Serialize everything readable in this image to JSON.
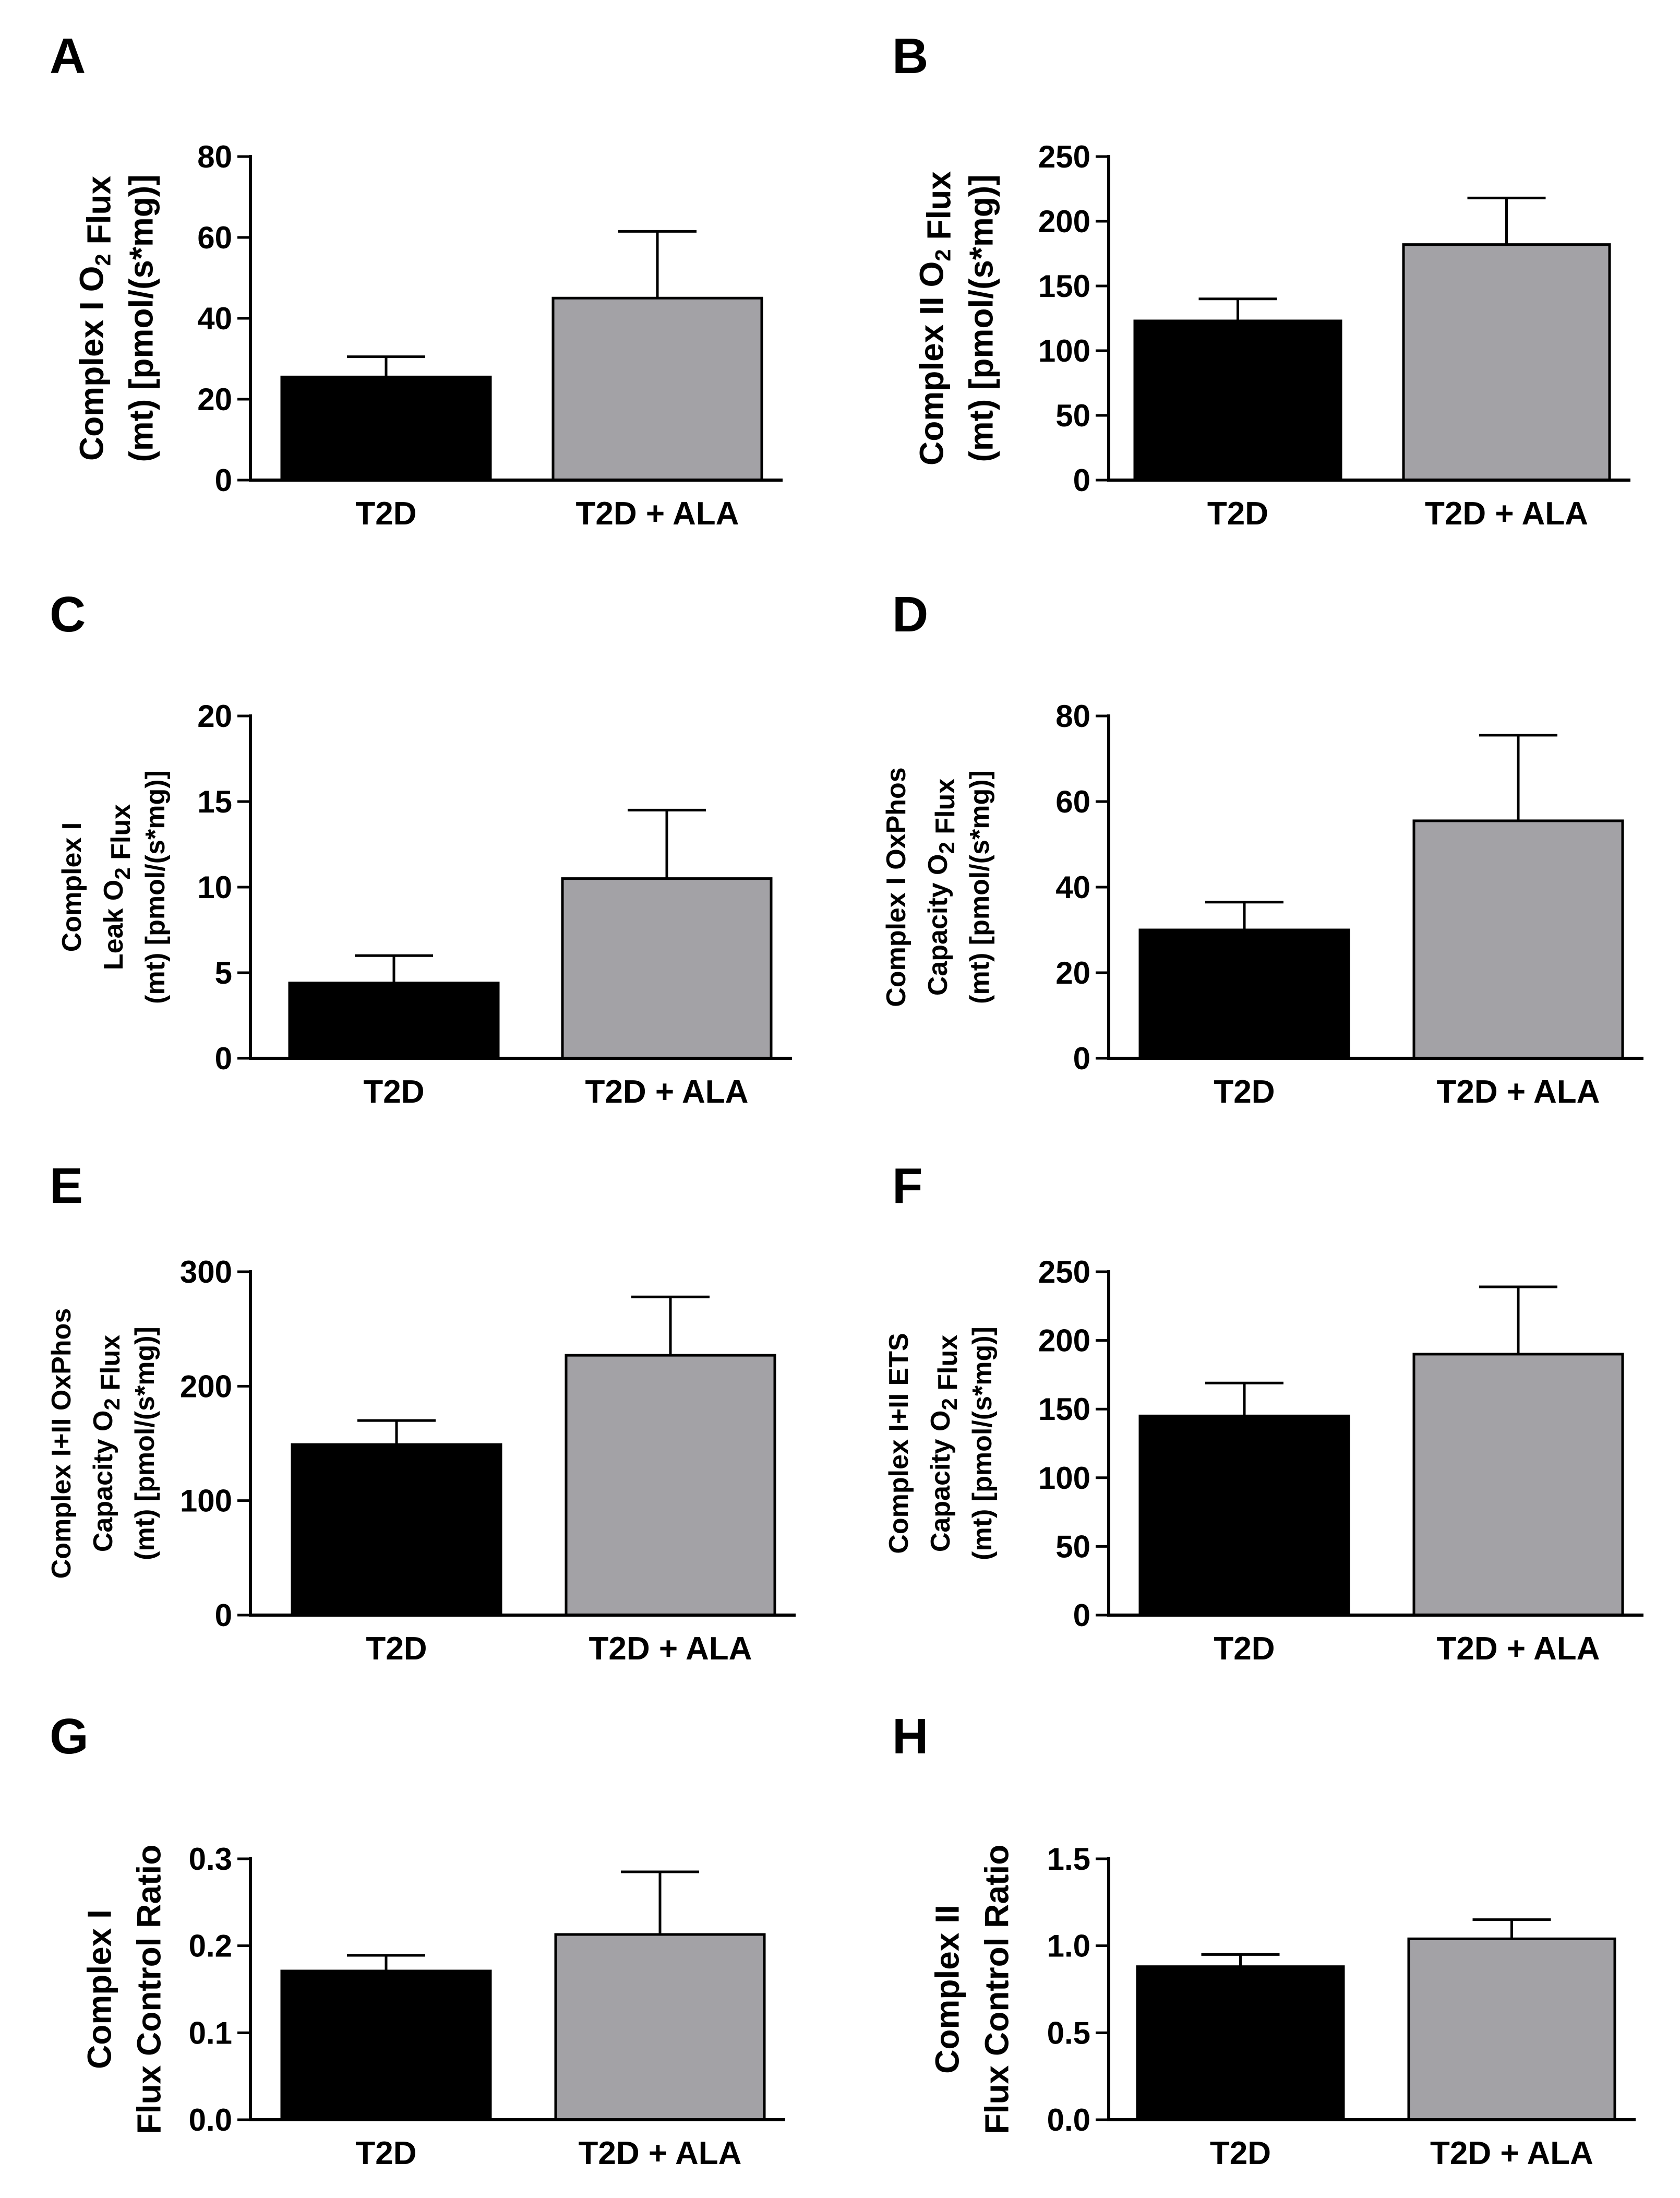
{
  "colors": {
    "t2d": "#000000",
    "t2d_ala": "#a3a2a6",
    "axis": "#000000"
  },
  "chart_data": [
    {
      "panel": "A",
      "type": "bar",
      "ylabel_lines": [
        [
          "Complex I O",
          {
            "sub": "2"
          },
          " Flux"
        ],
        [
          "(mt) [pmol/(s*mg)]"
        ]
      ],
      "categories": [
        "T2D",
        "T2D + ALA"
      ],
      "values": [
        25.5,
        45
      ],
      "errors": [
        5,
        16.5
      ],
      "ylim": [
        0,
        80
      ],
      "yticks": [
        0,
        20,
        40,
        60,
        80
      ],
      "ytick_labels": [
        "0",
        "20",
        "40",
        "60",
        "80"
      ]
    },
    {
      "panel": "B",
      "type": "bar",
      "ylabel_lines": [
        [
          "Complex II O",
          {
            "sub": "2"
          },
          " Flux"
        ],
        [
          "(mt) [pmol/(s*mg)]"
        ]
      ],
      "categories": [
        "T2D",
        "T2D + ALA"
      ],
      "values": [
        123,
        182
      ],
      "errors": [
        17,
        36
      ],
      "ylim": [
        0,
        250
      ],
      "yticks": [
        0,
        50,
        100,
        150,
        200,
        250
      ],
      "ytick_labels": [
        "0",
        "50",
        "100",
        "150",
        "200",
        "250"
      ]
    },
    {
      "panel": "C",
      "type": "bar",
      "ylabel_lines": [
        [
          "Complex I"
        ],
        [
          "Leak O",
          {
            "sub": "2"
          },
          " Flux"
        ],
        [
          "(mt) [pmol/(s*mg)]"
        ]
      ],
      "categories": [
        "T2D",
        "T2D + ALA"
      ],
      "values": [
        4.4,
        10.5
      ],
      "errors": [
        1.6,
        4
      ],
      "ylim": [
        0,
        20
      ],
      "yticks": [
        0,
        5,
        10,
        15,
        20
      ],
      "ytick_labels": [
        "0",
        "5",
        "10",
        "15",
        "20"
      ]
    },
    {
      "panel": "D",
      "type": "bar",
      "ylabel_lines": [
        [
          "Complex I OxPhos"
        ],
        [
          "Capacity O",
          {
            "sub": "2"
          },
          " Flux"
        ],
        [
          "(mt) [pmol/(s*mg)]"
        ]
      ],
      "categories": [
        "T2D",
        "T2D + ALA"
      ],
      "values": [
        30,
        55.5
      ],
      "errors": [
        6.5,
        20
      ],
      "ylim": [
        0,
        80
      ],
      "yticks": [
        0,
        20,
        40,
        60,
        80
      ],
      "ytick_labels": [
        "0",
        "20",
        "40",
        "60",
        "80"
      ]
    },
    {
      "panel": "E",
      "type": "bar",
      "ylabel_lines": [
        [
          "Complex I+II OxPhos"
        ],
        [
          "Capacity O",
          {
            "sub": "2"
          },
          " Flux"
        ],
        [
          "(mt) [pmol/(s*mg)]"
        ]
      ],
      "categories": [
        "T2D",
        "T2D + ALA"
      ],
      "values": [
        149,
        227
      ],
      "errors": [
        21,
        51
      ],
      "ylim": [
        0,
        300
      ],
      "yticks": [
        0,
        100,
        200,
        300
      ],
      "ytick_labels": [
        "0",
        "100",
        "200",
        "300"
      ]
    },
    {
      "panel": "F",
      "type": "bar",
      "ylabel_lines": [
        [
          "Complex I+II ETS"
        ],
        [
          "Capacity O",
          {
            "sub": "2"
          },
          " Flux"
        ],
        [
          "(mt) [pmol/(s*mg)]"
        ]
      ],
      "categories": [
        "T2D",
        "T2D + ALA"
      ],
      "values": [
        145,
        190
      ],
      "errors": [
        24,
        49
      ],
      "ylim": [
        0,
        250
      ],
      "yticks": [
        0,
        50,
        100,
        150,
        200,
        250
      ],
      "ytick_labels": [
        "0",
        "50",
        "100",
        "150",
        "200",
        "250"
      ]
    },
    {
      "panel": "G",
      "type": "bar",
      "ylabel_lines": [
        [
          "Complex I"
        ],
        [
          "Flux Control Ratio"
        ]
      ],
      "categories": [
        "T2D",
        "T2D + ALA"
      ],
      "values": [
        0.171,
        0.213
      ],
      "errors": [
        0.018,
        0.072
      ],
      "ylim": [
        0,
        0.3
      ],
      "yticks": [
        0,
        0.1,
        0.2,
        0.3
      ],
      "ytick_labels": [
        "0.0",
        "0.1",
        "0.2",
        "0.3"
      ]
    },
    {
      "panel": "H",
      "type": "bar",
      "ylabel_lines": [
        [
          "Complex II"
        ],
        [
          "Flux Control Ratio"
        ]
      ],
      "categories": [
        "T2D",
        "T2D + ALA"
      ],
      "values": [
        0.88,
        1.04
      ],
      "errors": [
        0.07,
        0.11
      ],
      "ylim": [
        0,
        1.5
      ],
      "yticks": [
        0,
        0.5,
        1.0,
        1.5
      ],
      "ytick_labels": [
        "0.0",
        "0.5",
        "1.0",
        "1.5"
      ]
    }
  ]
}
